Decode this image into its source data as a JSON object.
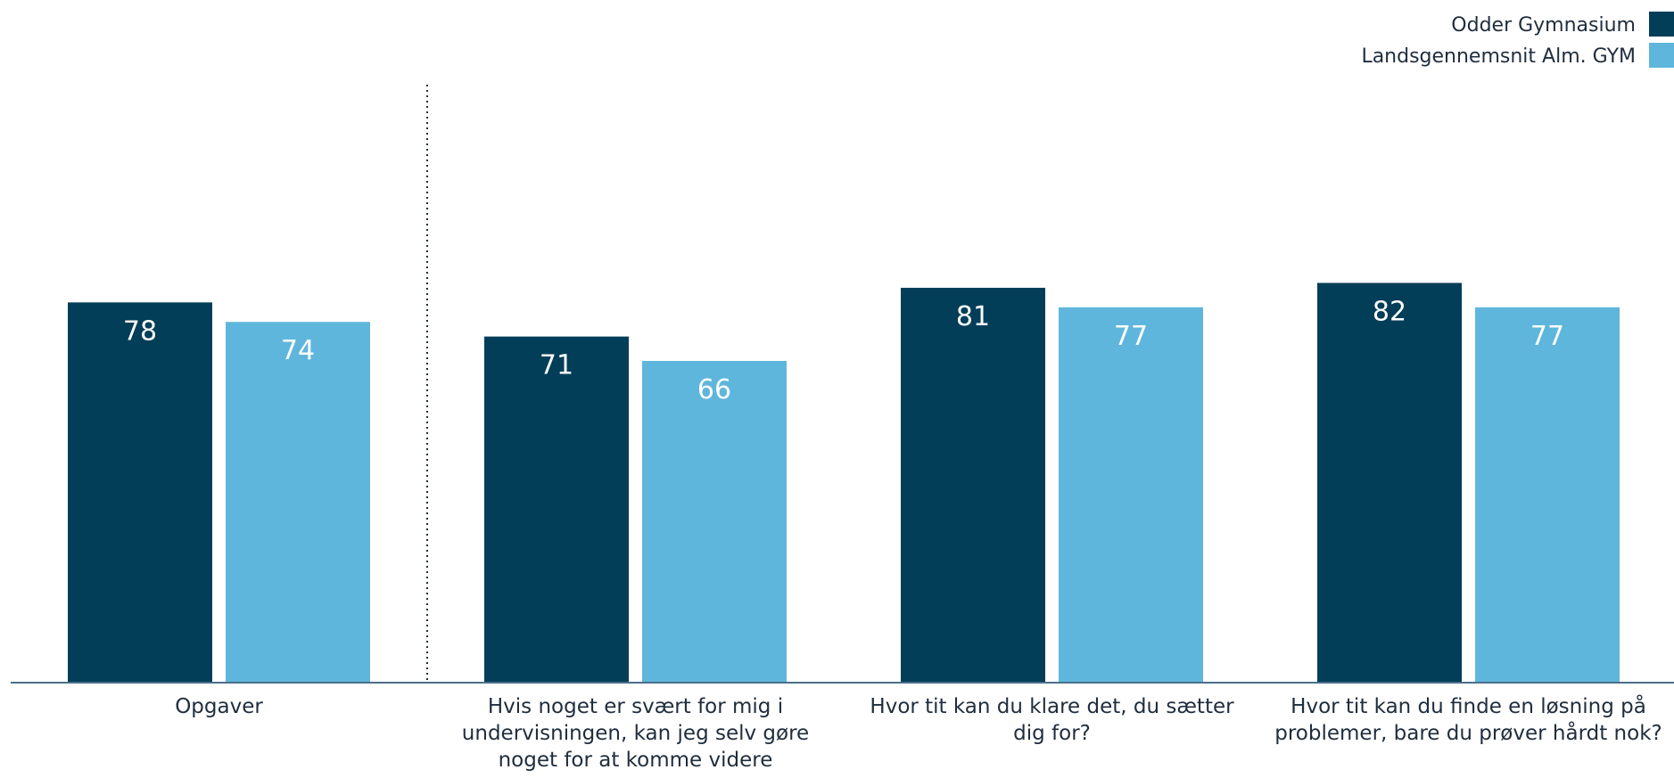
{
  "chart_data": {
    "type": "bar",
    "categories": [
      [
        "Opgaver"
      ],
      [
        "Hvis noget er svært for mig i",
        "undervisningen, kan jeg selv gøre",
        "noget for at komme videre"
      ],
      [
        "Hvor tit kan du klare det, du sætter",
        "dig for?"
      ],
      [
        "Hvor tit kan du finde en løsning på",
        "problemer, bare du prøver hårdt nok?"
      ]
    ],
    "series": [
      {
        "name": "Odder Gymnasium",
        "color": "#033e58",
        "values": [
          78,
          71,
          81,
          82
        ]
      },
      {
        "name": "Landsgennemsnit Alm. GYM",
        "color": "#5fb6dc",
        "values": [
          74,
          66,
          77,
          77
        ]
      }
    ],
    "ylim": [
      0,
      100
    ],
    "grid": false,
    "legend_position": "top-right",
    "separator_after_category": 0,
    "axis_color": "#4a6f8a"
  }
}
